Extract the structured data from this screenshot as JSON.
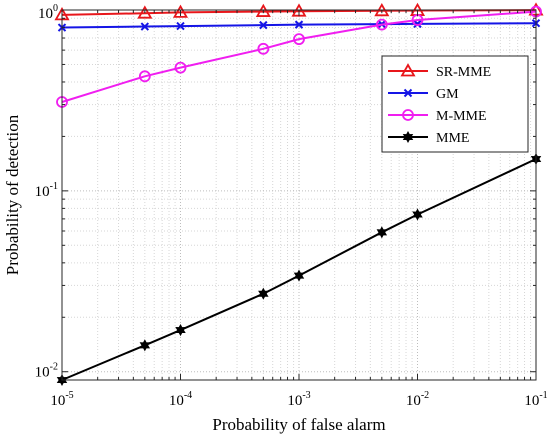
{
  "chart_data": {
    "type": "line",
    "xscale": "log",
    "yscale": "log",
    "xlabel": "Probability of false alarm",
    "ylabel": "Probability of detection",
    "xlim": [
      1e-05,
      0.1
    ],
    "ylim": [
      0.009,
      1
    ],
    "x_ticks": [
      {
        "base": "10",
        "exp": "-5"
      },
      {
        "base": "10",
        "exp": "-4"
      },
      {
        "base": "10",
        "exp": "-3"
      },
      {
        "base": "10",
        "exp": "-2"
      },
      {
        "base": "10",
        "exp": "-1"
      }
    ],
    "y_ticks": [
      {
        "base": "10",
        "exp": "-2"
      },
      {
        "base": "10",
        "exp": "-1"
      },
      {
        "base": "10",
        "exp": "0"
      }
    ],
    "grid": true,
    "legend_position": "top-right",
    "series": [
      {
        "name": "SR-MME",
        "color": "#e8161b",
        "marker": "triangle",
        "x": [
          1e-05,
          5e-05,
          0.0001,
          0.0005,
          0.001,
          0.005,
          0.01,
          0.1
        ],
        "y": [
          0.94,
          0.96,
          0.97,
          0.98,
          0.985,
          0.99,
          0.993,
          0.998
        ]
      },
      {
        "name": "GM",
        "color": "#1515e6",
        "marker": "x",
        "x": [
          1e-05,
          5e-05,
          0.0001,
          0.0005,
          0.001,
          0.005,
          0.01,
          0.1
        ],
        "y": [
          0.8,
          0.81,
          0.815,
          0.825,
          0.83,
          0.835,
          0.838,
          0.845
        ]
      },
      {
        "name": "M-MME",
        "color": "#f01ef0",
        "marker": "circle",
        "x": [
          1e-05,
          5e-05,
          0.0001,
          0.0005,
          0.001,
          0.005,
          0.01,
          0.1
        ],
        "y": [
          0.31,
          0.43,
          0.48,
          0.61,
          0.69,
          0.83,
          0.88,
          0.98
        ]
      },
      {
        "name": "MME",
        "color": "#000000",
        "marker": "star",
        "x": [
          1e-05,
          5e-05,
          0.0001,
          0.0005,
          0.001,
          0.005,
          0.01,
          0.1
        ],
        "y": [
          0.009,
          0.014,
          0.017,
          0.027,
          0.034,
          0.059,
          0.074,
          0.15
        ]
      }
    ]
  }
}
